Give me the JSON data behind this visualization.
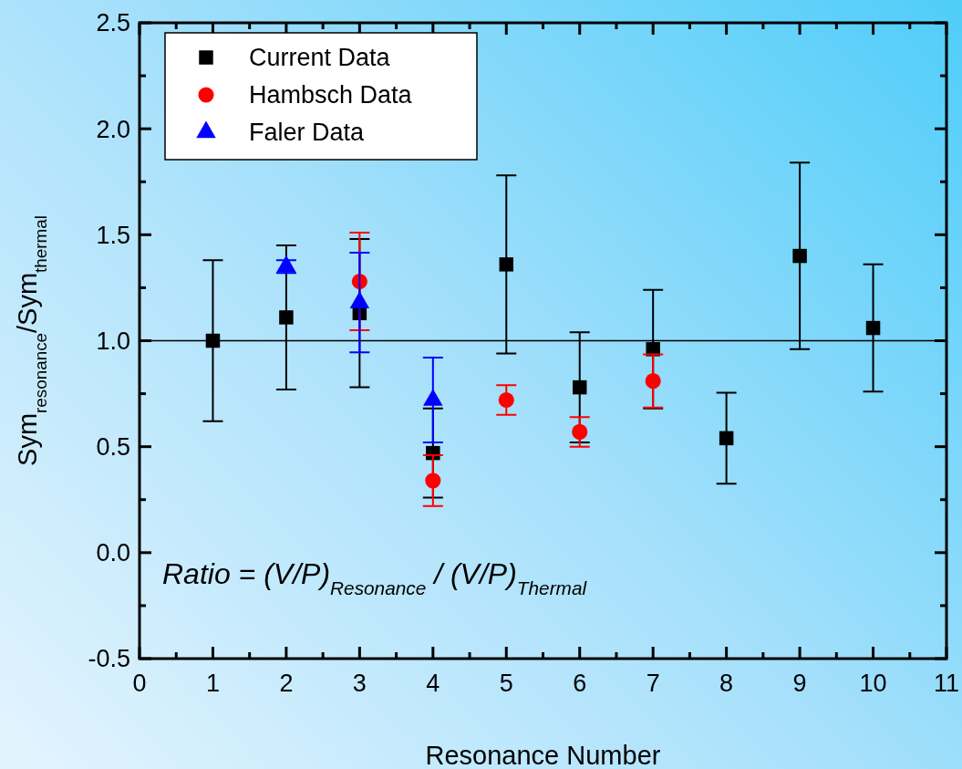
{
  "chart_data": {
    "type": "scatter",
    "xlabel": "Resonance Number",
    "ylabel": "Sym$_{resonance}$/Sym$_{thermal}$",
    "xlim": [
      0,
      11
    ],
    "xticks": [
      0,
      {
        "value": 0.5,
        "label": null
      },
      1,
      {
        "value": 1.5,
        "label": null
      },
      2,
      {
        "value": 2.5,
        "label": null
      },
      3,
      {
        "value": 3.5,
        "label": null
      },
      4,
      {
        "value": 4.5,
        "label": null
      },
      5,
      {
        "value": 5.5,
        "label": null
      },
      6,
      {
        "value": 6.5,
        "label": null
      },
      7,
      {
        "value": 7.5,
        "label": null
      },
      8,
      {
        "value": 8.5,
        "label": null
      },
      9,
      {
        "value": 9.5,
        "label": null
      },
      10,
      {
        "value": 10.5,
        "label": null
      },
      11
    ],
    "ylim": [
      -0.5,
      2.5
    ],
    "yticks": [
      -0.5,
      {
        "value": -0.25,
        "label": null
      },
      {
        "value": 0,
        "label": "0.0"
      },
      {
        "value": 0.25,
        "label": null
      },
      0.5,
      {
        "value": 0.75,
        "label": null
      },
      {
        "value": 1,
        "label": "1.0"
      },
      {
        "value": 1.25,
        "label": null
      },
      1.5,
      {
        "value": 1.75,
        "label": null
      },
      {
        "value": 2,
        "label": "2.0"
      },
      {
        "value": 2.25,
        "label": null
      },
      2.5
    ],
    "legend": "top left",
    "grid": false,
    "ref_lines": [
      {
        "axis": "y",
        "value": 1,
        "color": "#000000"
      }
    ],
    "annotations": [
      "Ratio = (V/P)$_{Resonance}$ / (V/P)$_{Thermal}$"
    ],
    "series": [
      {
        "name": "Current Data",
        "color": "#000000",
        "marker": "square",
        "x": [
          1,
          2,
          3,
          4,
          5,
          6,
          7,
          8,
          9,
          10
        ],
        "values": [
          1.0,
          1.11,
          1.13,
          0.47,
          1.36,
          0.78,
          0.96,
          0.54,
          1.4,
          1.06
        ],
        "errors": [
          0.38,
          0.34,
          0.35,
          0.21,
          0.42,
          0.26,
          0.28,
          0.215,
          0.44,
          0.3
        ]
      },
      {
        "name": "Hambsch Data",
        "color": "#ff0000",
        "marker": "circle",
        "x": [
          3,
          4,
          5,
          6,
          7
        ],
        "values": [
          1.28,
          0.34,
          0.72,
          0.57,
          0.81
        ],
        "errors": [
          0.23,
          0.12,
          0.07,
          0.07,
          0.125
        ]
      },
      {
        "name": "Faler Data",
        "color": "#0000ff",
        "marker": "triangle",
        "x": [
          2,
          3,
          4
        ],
        "values": [
          1.35,
          1.18,
          0.72
        ],
        "errors": [
          0.03,
          0.235,
          0.2
        ]
      }
    ]
  }
}
